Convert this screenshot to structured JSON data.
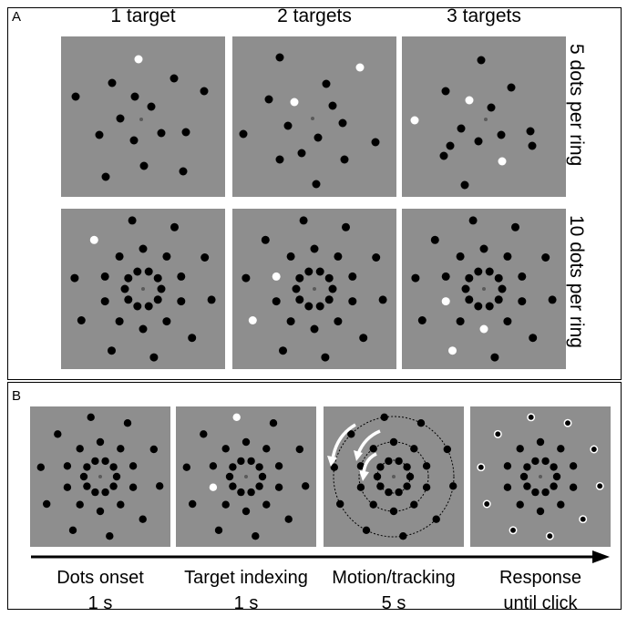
{
  "panelA": {
    "letter": "A",
    "columns": [
      "1 target",
      "2 targets",
      "3 targets"
    ],
    "rows": [
      "5 dots per ring",
      "10 dots per ring"
    ]
  },
  "panelB": {
    "letter": "B",
    "phases": [
      {
        "name": "Dots onset",
        "duration": "1 s"
      },
      {
        "name": "Target indexing",
        "duration": "1 s"
      },
      {
        "name": "Motion/tracking",
        "duration": "5 s"
      },
      {
        "name": "Response",
        "duration": "until click"
      }
    ]
  },
  "colors": {
    "stimulus_background": "#8e8e8e",
    "dot": "#000000",
    "target": "#ffffff",
    "fixation": "#5a5a5a"
  }
}
